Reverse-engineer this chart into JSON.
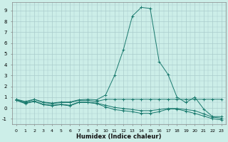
{
  "x": [
    0,
    1,
    2,
    3,
    4,
    5,
    6,
    7,
    8,
    9,
    10,
    11,
    12,
    13,
    14,
    15,
    16,
    17,
    18,
    19,
    20,
    21,
    22,
    23
  ],
  "line1": [
    0.8,
    0.6,
    0.8,
    0.55,
    0.45,
    0.55,
    0.55,
    0.75,
    0.8,
    0.75,
    1.2,
    3.0,
    5.4,
    8.5,
    9.3,
    9.2,
    4.3,
    3.1,
    1.0,
    0.5,
    1.0,
    -0.1,
    -0.8,
    -0.8
  ],
  "line2": [
    0.8,
    0.5,
    0.8,
    0.5,
    0.4,
    0.5,
    0.5,
    0.7,
    0.7,
    0.6,
    0.8,
    0.8,
    0.8,
    0.8,
    0.8,
    0.8,
    0.8,
    0.8,
    0.8,
    0.8,
    0.8,
    0.8,
    0.8,
    0.8
  ],
  "line3": [
    0.75,
    0.45,
    0.65,
    0.35,
    0.25,
    0.35,
    0.25,
    0.55,
    0.55,
    0.45,
    0.25,
    0.05,
    -0.05,
    -0.15,
    -0.25,
    -0.25,
    -0.15,
    -0.05,
    -0.05,
    -0.15,
    -0.25,
    -0.55,
    -0.85,
    -0.95
  ],
  "line4": [
    0.7,
    0.4,
    0.6,
    0.3,
    0.2,
    0.3,
    0.2,
    0.5,
    0.5,
    0.4,
    0.1,
    -0.15,
    -0.25,
    -0.35,
    -0.5,
    -0.5,
    -0.35,
    -0.1,
    -0.1,
    -0.3,
    -0.5,
    -0.75,
    -1.0,
    -1.1
  ],
  "color": "#1a7a6e",
  "bg_color": "#cceee8",
  "grid_color": "#aacccc",
  "xlabel": "Humidex (Indice chaleur)",
  "xlim": [
    -0.5,
    23.5
  ],
  "ylim": [
    -1.5,
    9.8
  ],
  "yticks": [
    -1,
    0,
    1,
    2,
    3,
    4,
    5,
    6,
    7,
    8,
    9
  ],
  "xticks": [
    0,
    1,
    2,
    3,
    4,
    5,
    6,
    7,
    8,
    9,
    10,
    11,
    12,
    13,
    14,
    15,
    16,
    17,
    18,
    19,
    20,
    21,
    22,
    23
  ]
}
